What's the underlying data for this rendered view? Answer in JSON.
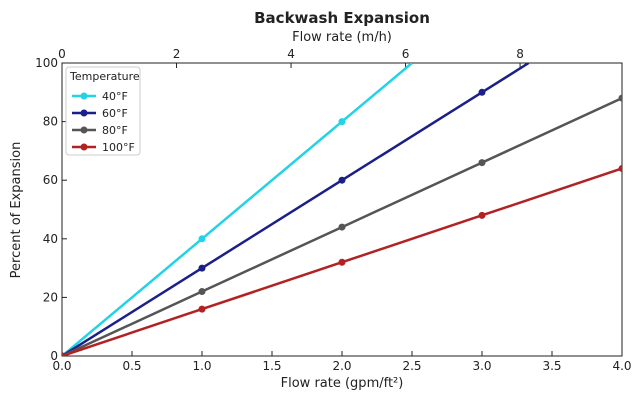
{
  "chart_data": {
    "type": "line",
    "title": "Backwash Expansion",
    "xlabel": "Flow rate (gpm/ft²)",
    "ylabel": "Percent of Expansion",
    "top_xlabel": "Flow rate (m/h)",
    "xlim": [
      0,
      4
    ],
    "ylim": [
      0,
      100
    ],
    "x_ticks": [
      0.0,
      0.5,
      1.0,
      1.5,
      2.0,
      2.5,
      3.0,
      3.5,
      4.0
    ],
    "x_tick_labels": [
      "0.0",
      "0.5",
      "1.0",
      "1.5",
      "2.0",
      "2.5",
      "3.0",
      "3.5",
      "4.0"
    ],
    "y_ticks": [
      0,
      20,
      40,
      60,
      80,
      100
    ],
    "y_tick_labels": [
      "0",
      "20",
      "40",
      "60",
      "80",
      "100"
    ],
    "top_x_ticks": [
      0,
      2,
      4,
      6,
      8
    ],
    "top_x_tick_labels": [
      "0",
      "2",
      "4",
      "6",
      "8"
    ],
    "top_xlim": [
      0,
      9.78
    ],
    "grid": false,
    "legend": {
      "title": "Temperature",
      "position": "top-left"
    },
    "series": [
      {
        "name": "40°F",
        "color": "#22d3e6",
        "x": [
          0,
          1,
          2,
          2.5
        ],
        "y": [
          0,
          40,
          80,
          100
        ],
        "markers": [
          0,
          1,
          2
        ]
      },
      {
        "name": "60°F",
        "color": "#1a1f8a",
        "x": [
          0,
          1,
          2,
          3,
          3.3333
        ],
        "y": [
          0,
          30,
          60,
          90,
          100
        ],
        "markers": [
          0,
          1,
          2,
          3
        ]
      },
      {
        "name": "80°F",
        "color": "#555555",
        "x": [
          0,
          1,
          2,
          3,
          4
        ],
        "y": [
          0,
          22,
          44,
          66,
          88
        ],
        "markers": [
          0,
          1,
          2,
          3,
          4
        ]
      },
      {
        "name": "100°F",
        "color": "#b22222",
        "x": [
          0,
          1,
          2,
          3,
          4
        ],
        "y": [
          0,
          16,
          32,
          48,
          64
        ],
        "markers": [
          0,
          1,
          2,
          3,
          4
        ]
      }
    ]
  }
}
